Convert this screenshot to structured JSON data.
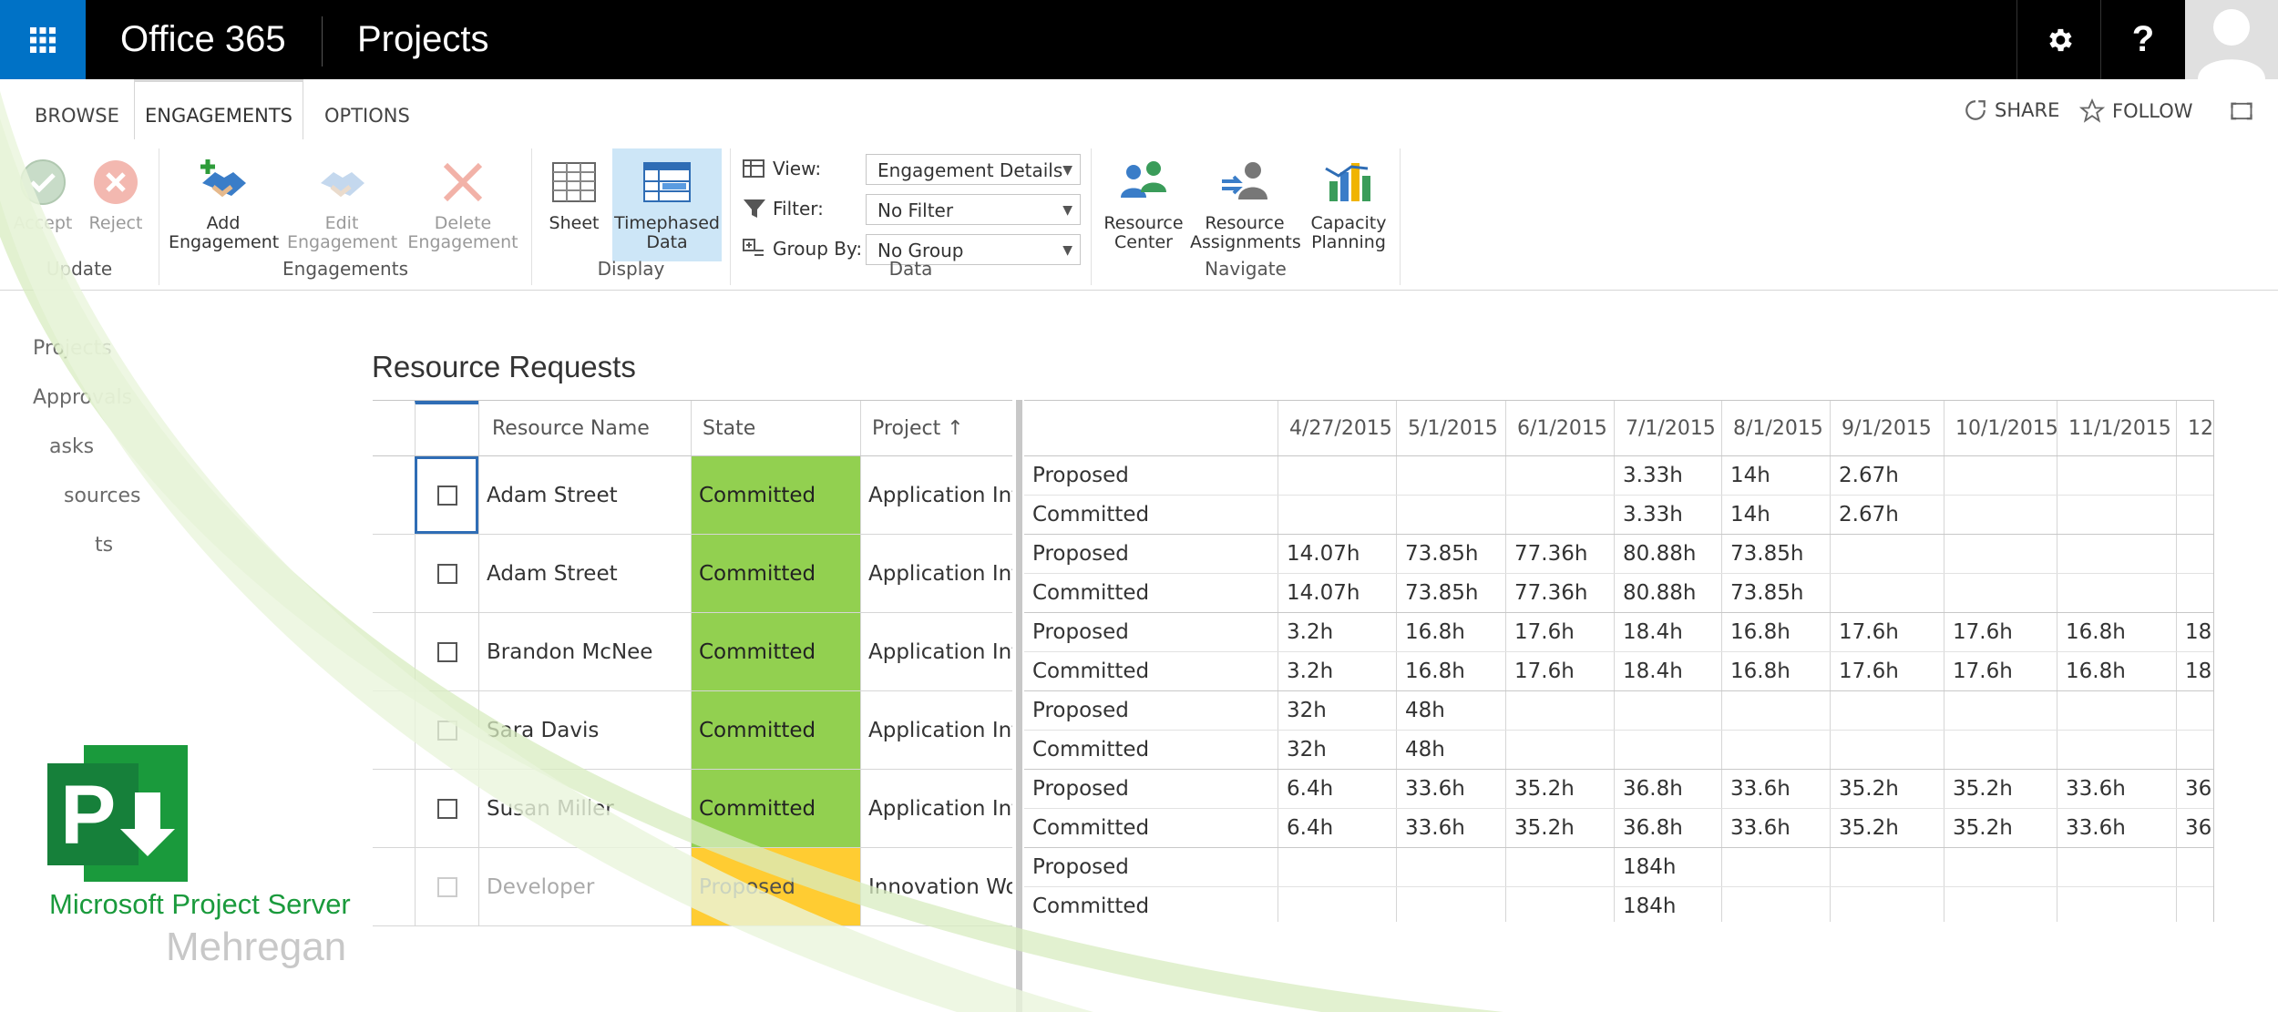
{
  "suite": {
    "brand": "Office 365",
    "app": "Projects"
  },
  "tabs": [
    "BROWSE",
    "ENGAGEMENTS",
    "OPTIONS"
  ],
  "ribbon_actions": {
    "share": "SHARE",
    "follow": "FOLLOW"
  },
  "ribbon": {
    "update": {
      "label": "Update",
      "accept": "Accept",
      "reject": "Reject"
    },
    "engagements": {
      "label": "Engagements",
      "add": [
        "Add",
        "Engagement"
      ],
      "edit": [
        "Edit",
        "Engagement"
      ],
      "delete": [
        "Delete",
        "Engagement"
      ]
    },
    "display": {
      "label": "Display",
      "sheet": "Sheet",
      "timephased": [
        "Timephased",
        "Data"
      ]
    },
    "data": {
      "label": "Data",
      "view_label": "View:",
      "view_value": "Engagement Details",
      "filter_label": "Filter:",
      "filter_value": "No Filter",
      "group_label": "Group By:",
      "group_value": "No Group"
    },
    "navigate": {
      "label": "Navigate",
      "resource_center": [
        "Resource",
        "Center"
      ],
      "resource_assignments": [
        "Resource",
        "Assignments"
      ],
      "capacity_planning": [
        "Capacity",
        "Planning"
      ]
    }
  },
  "left_nav": [
    "Projects",
    "Approvals",
    "asks",
    "sources",
    "ts"
  ],
  "page_title": "Resource Requests",
  "left_grid": {
    "headers": {
      "name": "Resource Name",
      "state": "State",
      "project": "Project ↑"
    },
    "rows": [
      {
        "name": "Adam Street",
        "state": "Committed",
        "project": "Application Infr"
      },
      {
        "name": "Adam Street",
        "state": "Committed",
        "project": "Application Infr"
      },
      {
        "name": "Brandon McNee",
        "state": "Committed",
        "project": "Application Infr"
      },
      {
        "name": "Sara Davis",
        "state": "Committed",
        "project": "Application Infr"
      },
      {
        "name": "Susan Miller",
        "state": "Committed",
        "project": "Application Infr"
      },
      {
        "name": "Developer",
        "state": "Proposed",
        "project": "Innovation Wo"
      }
    ]
  },
  "right_grid": {
    "dates": [
      "4/27/2015",
      "5/1/2015",
      "6/1/2015",
      "7/1/2015",
      "8/1/2015",
      "9/1/2015",
      "10/1/2015",
      "11/1/2015",
      "12"
    ],
    "rows": [
      {
        "type": "Proposed",
        "values": [
          "",
          "",
          "",
          "3.33h",
          "14h",
          "2.67h",
          "",
          "",
          ""
        ]
      },
      {
        "type": "Committed",
        "values": [
          "",
          "",
          "",
          "3.33h",
          "14h",
          "2.67h",
          "",
          "",
          ""
        ]
      },
      {
        "type": "Proposed",
        "values": [
          "14.07h",
          "73.85h",
          "77.36h",
          "80.88h",
          "73.85h",
          "",
          "",
          "",
          ""
        ]
      },
      {
        "type": "Committed",
        "values": [
          "14.07h",
          "73.85h",
          "77.36h",
          "80.88h",
          "73.85h",
          "",
          "",
          "",
          ""
        ]
      },
      {
        "type": "Proposed",
        "values": [
          "3.2h",
          "16.8h",
          "17.6h",
          "18.4h",
          "16.8h",
          "17.6h",
          "17.6h",
          "16.8h",
          "18"
        ]
      },
      {
        "type": "Committed",
        "values": [
          "3.2h",
          "16.8h",
          "17.6h",
          "18.4h",
          "16.8h",
          "17.6h",
          "17.6h",
          "16.8h",
          "18"
        ]
      },
      {
        "type": "Proposed",
        "values": [
          "32h",
          "48h",
          "",
          "",
          "",
          "",
          "",
          "",
          ""
        ]
      },
      {
        "type": "Committed",
        "values": [
          "32h",
          "48h",
          "",
          "",
          "",
          "",
          "",
          "",
          ""
        ]
      },
      {
        "type": "Proposed",
        "values": [
          "6.4h",
          "33.6h",
          "35.2h",
          "36.8h",
          "33.6h",
          "35.2h",
          "35.2h",
          "33.6h",
          "36"
        ]
      },
      {
        "type": "Committed",
        "values": [
          "6.4h",
          "33.6h",
          "35.2h",
          "36.8h",
          "33.6h",
          "35.2h",
          "35.2h",
          "33.6h",
          "36"
        ]
      },
      {
        "type": "Proposed",
        "values": [
          "",
          "",
          "",
          "184h",
          "",
          "",
          "",
          "",
          ""
        ]
      },
      {
        "type": "Committed",
        "values": [
          "",
          "",
          "",
          "184h",
          "",
          "",
          "",
          "",
          ""
        ]
      }
    ]
  },
  "watermark": {
    "product": "Microsoft Project Server",
    "author": "Mehregan"
  },
  "colors": {
    "suite_bar": "#000000",
    "waffle": "#0072c6",
    "committed": "#92d050",
    "proposed": "#ffc000",
    "brand_green": "#1a9a3c"
  }
}
